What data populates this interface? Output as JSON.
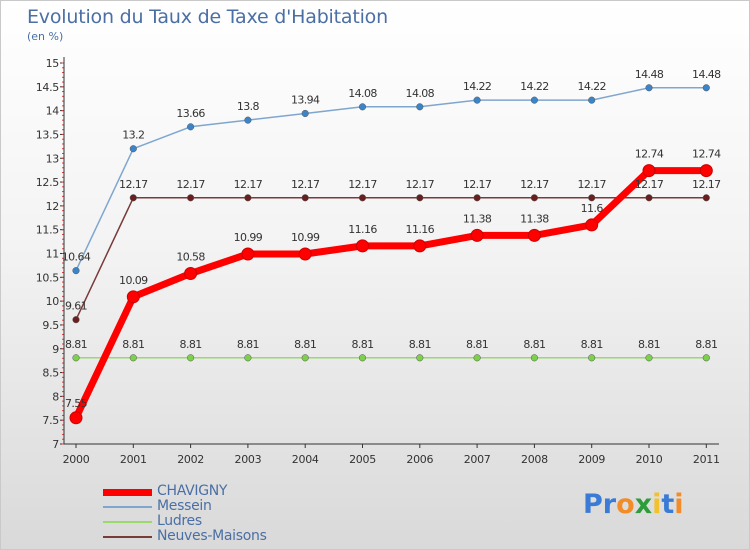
{
  "header": {
    "title": "Evolution du Taux de Taxe d'Habitation",
    "subtitle": "(en %)"
  },
  "logo": {
    "text": "Proxiti",
    "colors": [
      "#3a7bd5",
      "#3a7bd5",
      "#f28c28",
      "#2d9c3a",
      "#f2c12e",
      "#3a7bd5",
      "#f28c28"
    ]
  },
  "chart_data": {
    "type": "line",
    "x": [
      "2000",
      "2001",
      "2002",
      "2003",
      "2004",
      "2005",
      "2006",
      "2007",
      "2008",
      "2009",
      "2010",
      "2011"
    ],
    "ylim": [
      7,
      15
    ],
    "yticks": [
      "7",
      "7.5",
      "8",
      "8.5",
      "9",
      "9.5",
      "10",
      "10.5",
      "11",
      "11.5",
      "12",
      "12.5",
      "13",
      "13.5",
      "14",
      "14.5",
      "15"
    ],
    "grid": false,
    "legend_position": "bottom-left",
    "series": [
      {
        "name": "CHAVIGNY",
        "color": "#ff0000",
        "values": [
          7.55,
          10.09,
          10.58,
          10.99,
          10.99,
          11.16,
          11.16,
          11.38,
          11.38,
          11.6,
          12.74,
          12.74
        ],
        "labels": [
          "7.55",
          "10.09",
          "10.58",
          "10.99",
          "10.99",
          "11.16",
          "11.16",
          "11.38",
          "11.38",
          "11.6",
          "12.74",
          "12.74"
        ]
      },
      {
        "name": "Messein",
        "color": "#7fa6cf",
        "values": [
          10.64,
          13.2,
          13.66,
          13.8,
          13.94,
          14.08,
          14.08,
          14.22,
          14.22,
          14.22,
          14.48,
          14.48
        ],
        "labels": [
          "10.64",
          "13.2",
          "13.66",
          "13.8",
          "13.94",
          "14.08",
          "14.08",
          "14.22",
          "14.22",
          "14.22",
          "14.48",
          "14.48"
        ]
      },
      {
        "name": "Ludres",
        "color": "#9ad96a",
        "values": [
          8.81,
          8.81,
          8.81,
          8.81,
          8.81,
          8.81,
          8.81,
          8.81,
          8.81,
          8.81,
          8.81,
          8.81
        ],
        "labels": [
          "8.81",
          "8.81",
          "8.81",
          "8.81",
          "8.81",
          "8.81",
          "8.81",
          "8.81",
          "8.81",
          "8.81",
          "8.81",
          "8.81"
        ]
      },
      {
        "name": "Neuves-Maisons",
        "color": "#7a3a3a",
        "values": [
          9.61,
          12.17,
          12.17,
          12.17,
          12.17,
          12.17,
          12.17,
          12.17,
          12.17,
          12.17,
          12.17,
          12.17
        ],
        "labels": [
          "9.61",
          "12.17",
          "12.17",
          "12.17",
          "12.17",
          "12.17",
          "12.17",
          "12.17",
          "12.17",
          "12.17",
          "12.17",
          "12.17"
        ]
      }
    ]
  }
}
